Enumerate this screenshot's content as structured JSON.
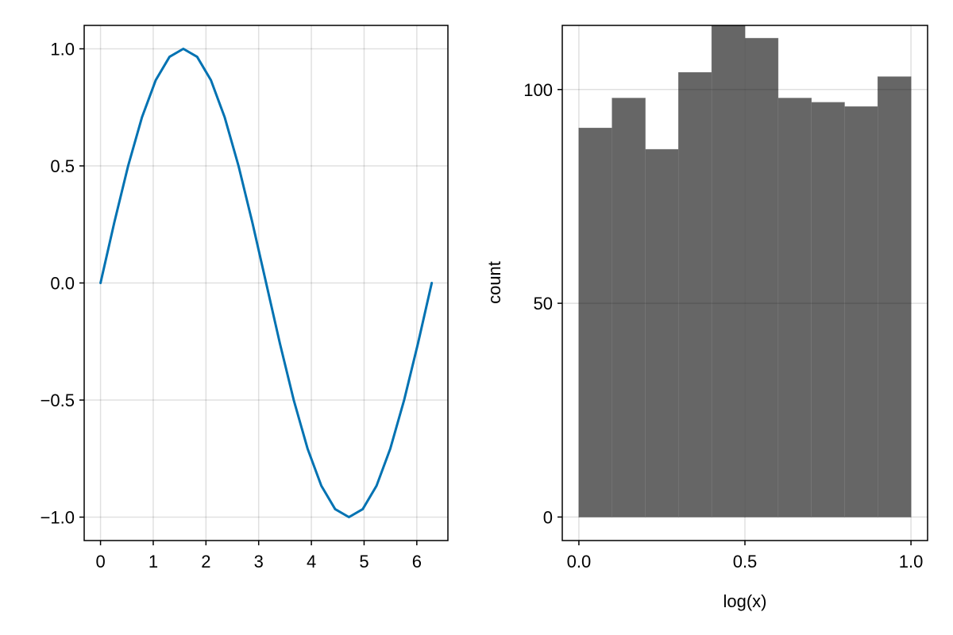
{
  "chart_data": [
    {
      "type": "line",
      "title": "",
      "xlabel": "",
      "ylabel": "",
      "xlim": [
        -0.31,
        6.59
      ],
      "ylim": [
        -1.1,
        1.1
      ],
      "xticks": [
        0,
        1,
        2,
        3,
        4,
        5,
        6
      ],
      "xtick_labels": [
        "0",
        "1",
        "2",
        "3",
        "4",
        "5",
        "6"
      ],
      "yticks": [
        -1.0,
        -0.5,
        0.0,
        0.5,
        1.0
      ],
      "ytick_labels": [
        "−1.0",
        "−0.5",
        "0.0",
        "0.5",
        "1.0"
      ],
      "grid": true,
      "series": [
        {
          "color": "#0072B2",
          "x": [
            0,
            0.2618,
            0.5236,
            0.7854,
            1.0472,
            1.309,
            1.5708,
            1.8326,
            2.0944,
            2.3562,
            2.618,
            2.8798,
            3.1416,
            3.4034,
            3.6652,
            3.927,
            4.1888,
            4.4506,
            4.7124,
            4.9742,
            5.236,
            5.4978,
            5.7596,
            6.0214,
            6.2832
          ],
          "y": [
            0,
            0.2588,
            0.5,
            0.7071,
            0.866,
            0.9659,
            1.0,
            0.9659,
            0.866,
            0.7071,
            0.5,
            0.2588,
            0.0,
            -0.2588,
            -0.5,
            -0.7071,
            -0.866,
            -0.9659,
            -1.0,
            -0.9659,
            -0.866,
            -0.7071,
            -0.5,
            -0.2588,
            0.0
          ]
        }
      ]
    },
    {
      "type": "bar",
      "title": "",
      "xlabel": "log(x)",
      "ylabel": "count",
      "xlim": [
        -0.05,
        1.05
      ],
      "ylim": [
        -5.5,
        115
      ],
      "xticks": [
        0.0,
        0.5,
        1.0
      ],
      "xtick_labels": [
        "0.0",
        "0.5",
        "1.0"
      ],
      "yticks": [
        0,
        50,
        100
      ],
      "ytick_labels": [
        "0",
        "50",
        "100"
      ],
      "grid": true,
      "bar_color": "#666666",
      "bin_edges": [
        0.0,
        0.1,
        0.2,
        0.3,
        0.4,
        0.5,
        0.6,
        0.7,
        0.8,
        0.9,
        1.0
      ],
      "values": [
        91,
        98,
        86,
        104,
        115,
        112,
        98,
        97,
        96,
        103
      ]
    }
  ]
}
